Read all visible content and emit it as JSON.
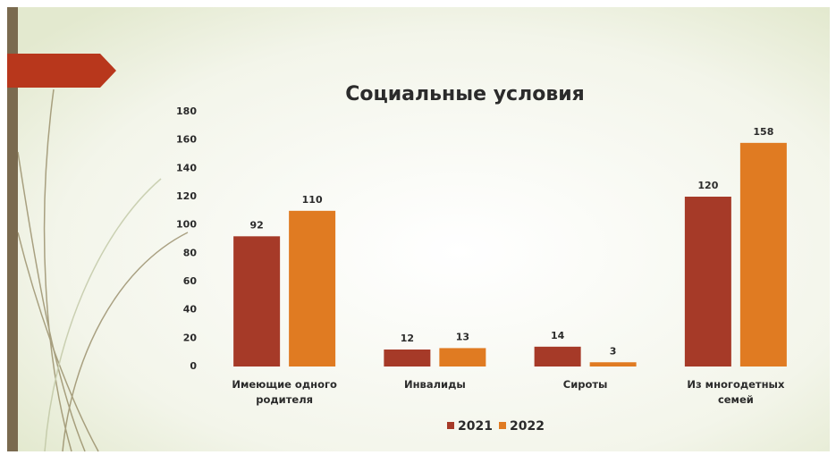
{
  "chart_data": {
    "type": "bar",
    "title": "Социальные условия",
    "categories": [
      "Имеющие одного родителя",
      "Инвалиды",
      "Сироты",
      "Из многодетных семей"
    ],
    "series": [
      {
        "name": "2021",
        "color": "#a63a28",
        "values": [
          92,
          12,
          14,
          120
        ]
      },
      {
        "name": "2022",
        "color": "#e07b22",
        "values": [
          110,
          13,
          3,
          158
        ]
      }
    ],
    "ylim": [
      0,
      180
    ],
    "yticks": [
      0,
      20,
      40,
      60,
      80,
      100,
      120,
      140,
      160,
      180
    ],
    "grid": false,
    "legend": "bottom"
  }
}
